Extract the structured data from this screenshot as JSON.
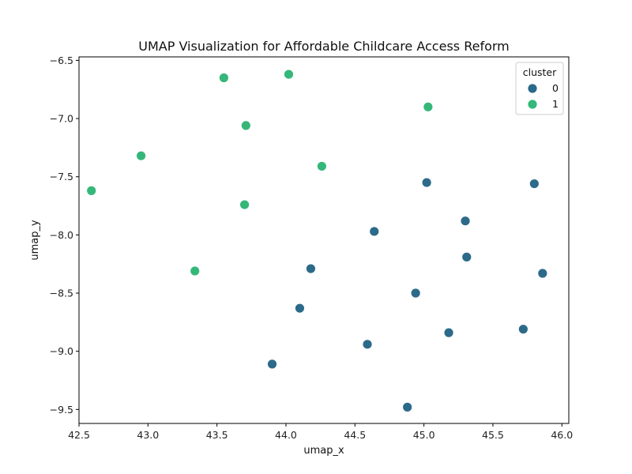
{
  "chart_data": {
    "type": "scatter",
    "title": "UMAP Visualization for Affordable Childcare Access Reform",
    "xlabel": "umap_x",
    "ylabel": "umap_y",
    "xlim": [
      42.5,
      46.05
    ],
    "ylim": [
      -9.62,
      -6.47
    ],
    "xticks": [
      42.5,
      43.0,
      43.5,
      44.0,
      44.5,
      45.0,
      45.5,
      46.0
    ],
    "yticks": [
      -6.5,
      -7.0,
      -7.5,
      -8.0,
      -8.5,
      -9.0,
      -9.5
    ],
    "xtick_labels": [
      "42.5",
      "43.0",
      "43.5",
      "44.0",
      "44.5",
      "45.0",
      "45.5",
      "46.0"
    ],
    "ytick_labels": [
      "−6.5",
      "−7.0",
      "−7.5",
      "−8.0",
      "−8.5",
      "−9.0",
      "−9.5"
    ],
    "grid": false,
    "legend": {
      "title": "cluster",
      "position": "top-right",
      "entries": [
        {
          "label": "0",
          "color": "#2c6a8a"
        },
        {
          "label": "1",
          "color": "#35b779"
        }
      ]
    },
    "series": [
      {
        "name": "0",
        "color": "#2c6a8a",
        "points": [
          [
            45.02,
            -7.55
          ],
          [
            45.8,
            -7.56
          ],
          [
            45.3,
            -7.88
          ],
          [
            44.64,
            -7.97
          ],
          [
            45.31,
            -8.19
          ],
          [
            44.18,
            -8.29
          ],
          [
            45.86,
            -8.33
          ],
          [
            44.94,
            -8.5
          ],
          [
            44.1,
            -8.63
          ],
          [
            45.72,
            -8.81
          ],
          [
            45.18,
            -8.84
          ],
          [
            44.59,
            -8.94
          ],
          [
            43.9,
            -9.11
          ],
          [
            44.88,
            -9.48
          ]
        ]
      },
      {
        "name": "1",
        "color": "#35b779",
        "points": [
          [
            43.55,
            -6.65
          ],
          [
            44.02,
            -6.62
          ],
          [
            45.03,
            -6.9
          ],
          [
            43.71,
            -7.06
          ],
          [
            42.95,
            -7.32
          ],
          [
            44.26,
            -7.41
          ],
          [
            42.59,
            -7.62
          ],
          [
            43.7,
            -7.74
          ],
          [
            43.34,
            -8.31
          ]
        ]
      }
    ]
  }
}
